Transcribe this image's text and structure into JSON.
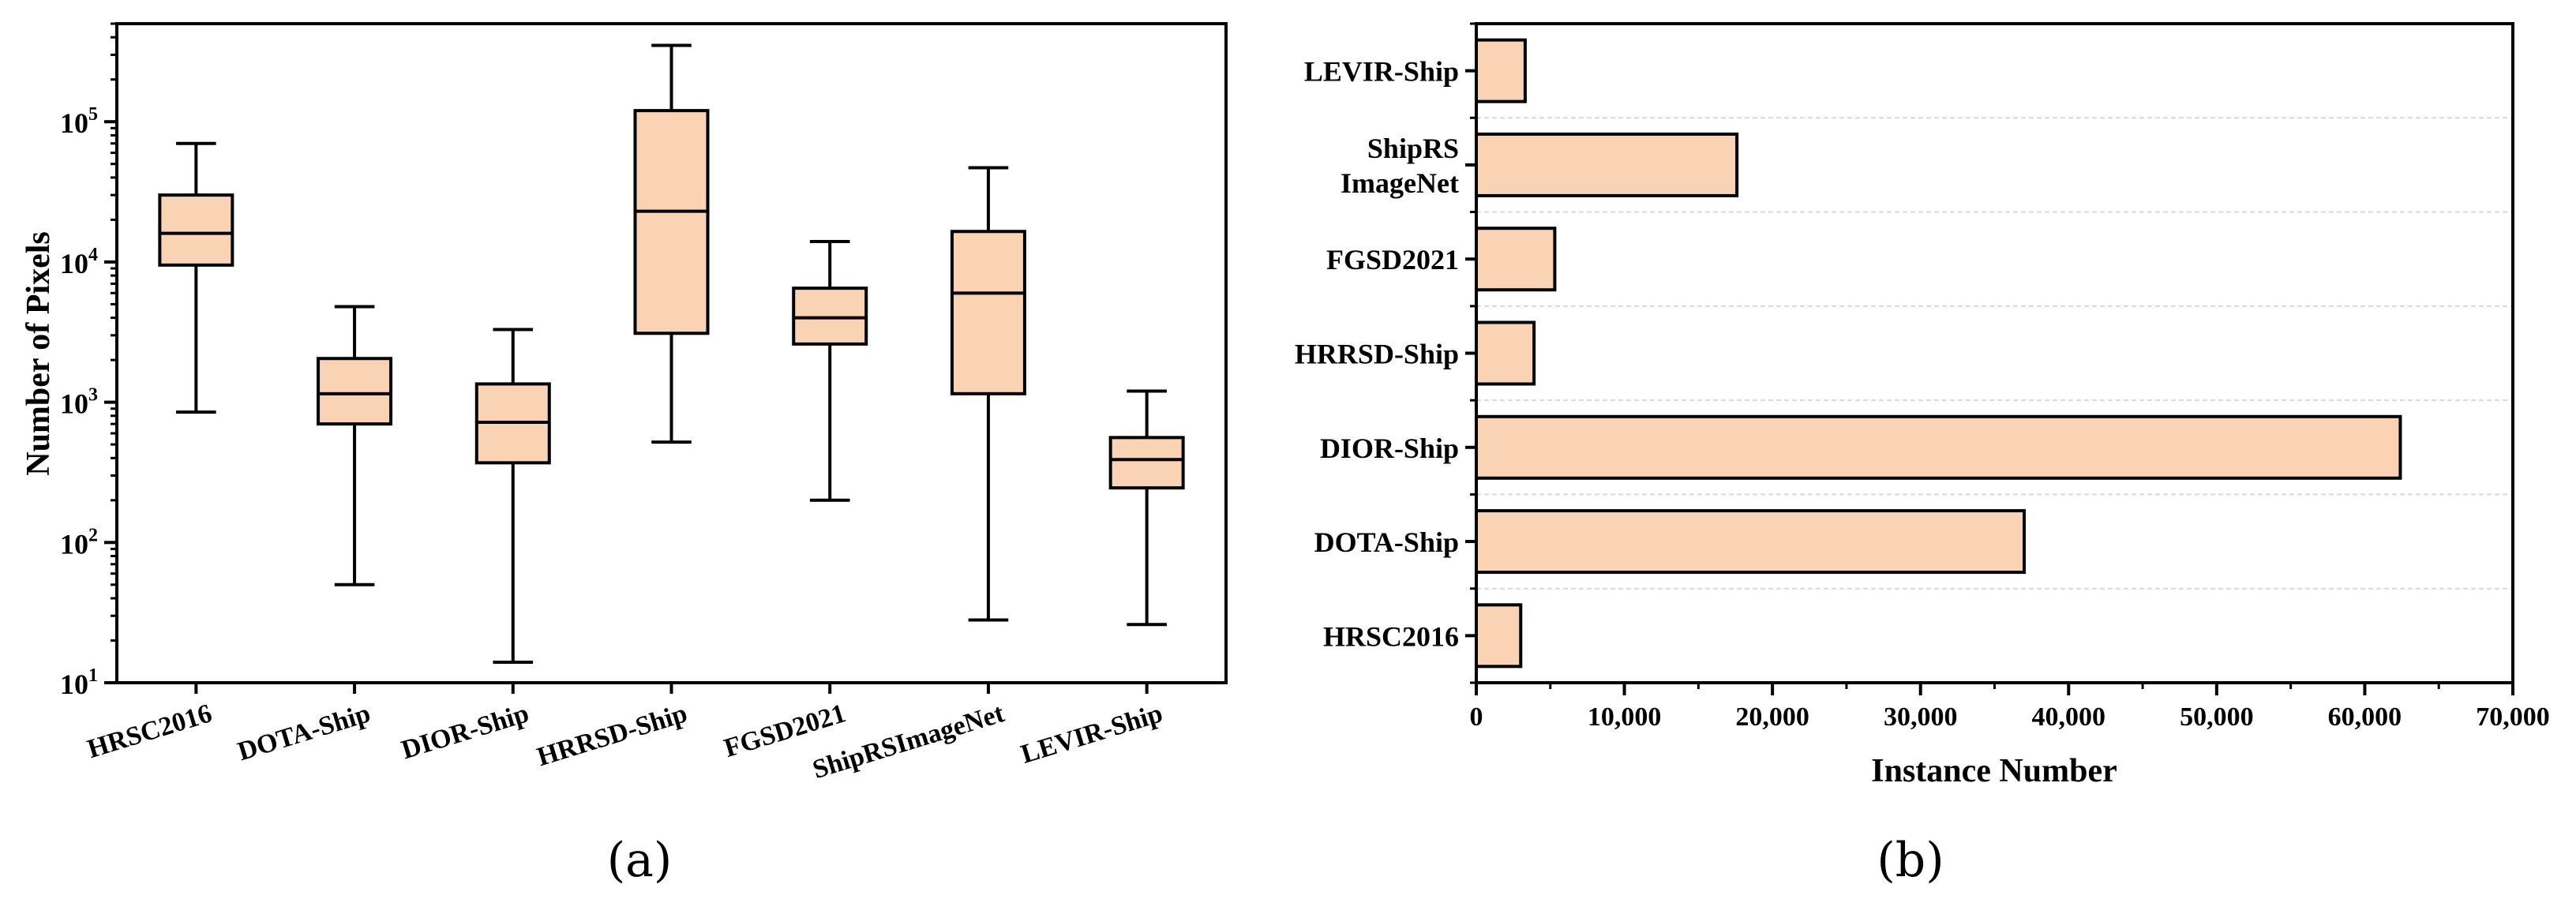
{
  "colors": {
    "fill": "#f9d3b3",
    "stroke": "#000000",
    "grid": "#d8d8d8"
  },
  "chart_data": [
    {
      "type": "box",
      "caption": "(a)",
      "ylabel": "Number of Pixels",
      "yscale": "log",
      "ylim": [
        10,
        500000
      ],
      "yticks": [
        {
          "value": 10,
          "base": "10",
          "exp": "1"
        },
        {
          "value": 100,
          "base": "10",
          "exp": "2"
        },
        {
          "value": 1000,
          "base": "10",
          "exp": "3"
        },
        {
          "value": 10000,
          "base": "10",
          "exp": "4"
        },
        {
          "value": 100000,
          "base": "10",
          "exp": "5"
        }
      ],
      "categories": [
        "HRSC2016",
        "DOTA-Ship",
        "DIOR-Ship",
        "HRRSD-Ship",
        "FGSD2021",
        "ShipRSImageNet",
        "LEVIR-Ship"
      ],
      "boxes": [
        {
          "min": 850,
          "q1": 9500,
          "median": 16000,
          "q3": 30000,
          "max": 70000
        },
        {
          "min": 50,
          "q1": 700,
          "median": 1150,
          "q3": 2050,
          "max": 4800
        },
        {
          "min": 14,
          "q1": 370,
          "median": 720,
          "q3": 1350,
          "max": 3300
        },
        {
          "min": 520,
          "q1": 3100,
          "median": 23000,
          "q3": 120000,
          "max": 350000
        },
        {
          "min": 200,
          "q1": 2600,
          "median": 4000,
          "q3": 6500,
          "max": 14000
        },
        {
          "min": 28,
          "q1": 1150,
          "median": 6000,
          "q3": 16500,
          "max": 47000
        },
        {
          "min": 26,
          "q1": 245,
          "median": 390,
          "q3": 560,
          "max": 1200
        }
      ]
    },
    {
      "type": "bar",
      "orientation": "horizontal",
      "caption": "(b)",
      "xlabel": "Instance Number",
      "xlim": [
        0,
        70000
      ],
      "xticks": [
        {
          "value": 0,
          "label": "0"
        },
        {
          "value": 10000,
          "label": "10,000"
        },
        {
          "value": 20000,
          "label": "20,000"
        },
        {
          "value": 30000,
          "label": "30,000"
        },
        {
          "value": 40000,
          "label": "40,000"
        },
        {
          "value": 50000,
          "label": "50,000"
        },
        {
          "value": 60000,
          "label": "60,000"
        },
        {
          "value": 70000,
          "label": "70,000"
        }
      ],
      "categories": [
        {
          "lines": [
            "LEVIR-Ship"
          ]
        },
        {
          "lines": [
            "ShipRS",
            "ImageNet"
          ]
        },
        {
          "lines": [
            "FGSD2021"
          ]
        },
        {
          "lines": [
            "HRRSD-Ship"
          ]
        },
        {
          "lines": [
            "DIOR-Ship"
          ]
        },
        {
          "lines": [
            "DOTA-Ship"
          ]
        },
        {
          "lines": [
            "HRSC2016"
          ]
        }
      ],
      "values": [
        3300,
        17600,
        5300,
        3900,
        62400,
        37000,
        3000
      ]
    }
  ]
}
